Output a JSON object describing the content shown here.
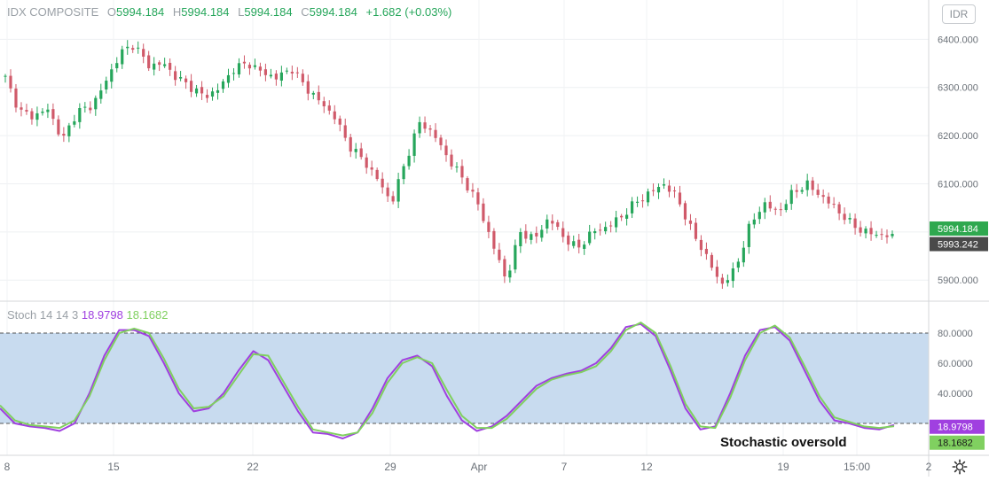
{
  "legend": {
    "symbol": "IDX COMPOSITE",
    "o_label": "O",
    "open": "5994.184",
    "h_label": "H",
    "high": "5994.184",
    "l_label": "L",
    "low": "5994.184",
    "c_label": "C",
    "close": "5994.184",
    "change": "+1.682 (+0.03%)"
  },
  "currency_label": "IDR",
  "stoch_legend": {
    "name": "Stoch 14 14 3",
    "k_value": "18.9798",
    "d_value": "18.1682"
  },
  "annotation": "Stochastic oversold",
  "colors": {
    "up": "#26a65b",
    "down": "#d05a6a",
    "k_line": "#a040e0",
    "d_line": "#80d060",
    "band_fill": "#c8dbef",
    "price_tag_green": "#2fa84f",
    "price_tag_dark": "#4a4a4a"
  },
  "chart_data": [
    {
      "type": "candlestick",
      "title": "IDX COMPOSITE",
      "y_ticks": [
        "6400.000",
        "6300.000",
        "6200.000",
        "6100.000",
        "6000.000",
        "5900.000"
      ],
      "ylim": [
        5860,
        6430
      ],
      "last_price_labels": [
        "5994.184",
        "5993.242"
      ],
      "x_ticks": [
        "8",
        "15",
        "22",
        "29",
        "Apr",
        "7",
        "12",
        "19",
        "15:00",
        "2"
      ],
      "close_path": [
        6320,
        6250,
        6240,
        6255,
        6190,
        6250,
        6260,
        6310,
        6370,
        6390,
        6345,
        6350,
        6320,
        6300,
        6280,
        6300,
        6340,
        6350,
        6330,
        6320,
        6340,
        6300,
        6270,
        6240,
        6180,
        6150,
        6110,
        6060,
        6150,
        6230,
        6200,
        6150,
        6110,
        6060,
        5980,
        5900,
        6000,
        5985,
        6030,
        5990,
        5965,
        6000,
        6010,
        6030,
        6060,
        6080,
        6100,
        6070,
        6000,
        5950,
        5890,
        5920,
        6010,
        6060,
        6040,
        6080,
        6100,
        6075,
        6050,
        6020,
        6000,
        5995,
        5990
      ],
      "grid": true
    },
    {
      "type": "line",
      "title": "Stoch 14 14 3",
      "y_ticks": [
        "80.0000",
        "60.0000",
        "40.0000"
      ],
      "ylim": [
        0,
        100
      ],
      "band": [
        20,
        80
      ],
      "series": [
        {
          "name": "%K",
          "color": "#a040e0",
          "values": [
            30,
            20,
            18,
            17,
            15,
            20,
            40,
            65,
            82,
            82,
            78,
            60,
            40,
            28,
            30,
            40,
            55,
            68,
            62,
            45,
            28,
            14,
            13,
            10,
            14,
            30,
            50,
            62,
            65,
            58,
            38,
            22,
            15,
            18,
            25,
            35,
            45,
            50,
            53,
            55,
            60,
            70,
            84,
            86,
            78,
            55,
            30,
            16,
            18,
            40,
            65,
            82,
            84,
            75,
            55,
            35,
            22,
            20,
            17,
            16,
            18.9798
          ]
        },
        {
          "name": "%D",
          "color": "#80d060",
          "values": [
            32,
            22,
            19,
            18,
            17,
            22,
            38,
            62,
            80,
            83,
            80,
            63,
            43,
            30,
            31,
            38,
            52,
            66,
            65,
            48,
            31,
            16,
            14,
            12,
            14,
            27,
            47,
            60,
            64,
            60,
            42,
            25,
            17,
            17,
            23,
            33,
            43,
            49,
            52,
            54,
            58,
            68,
            82,
            87,
            80,
            58,
            33,
            18,
            17,
            37,
            62,
            80,
            85,
            77,
            58,
            38,
            24,
            21,
            18,
            17,
            18.1682
          ]
        }
      ],
      "annotation": "Stochastic oversold",
      "grid": true
    }
  ]
}
